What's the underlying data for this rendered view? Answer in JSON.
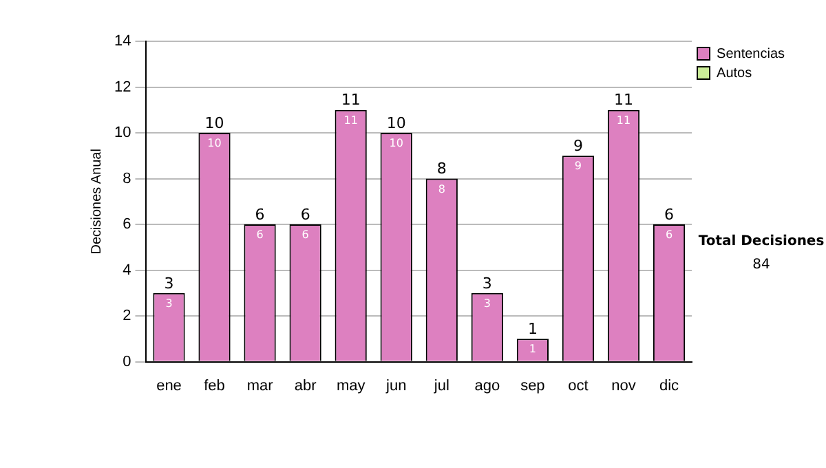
{
  "chart_data": {
    "type": "bar",
    "stacked": true,
    "categories": [
      "ene",
      "feb",
      "mar",
      "abr",
      "may",
      "jun",
      "jul",
      "ago",
      "sep",
      "oct",
      "nov",
      "dic"
    ],
    "series": [
      {
        "name": "Sentencias",
        "color": "#dd80c0",
        "values": [
          3,
          10,
          6,
          6,
          11,
          10,
          8,
          3,
          1,
          9,
          11,
          6
        ]
      },
      {
        "name": "Autos",
        "color": "#ccee99",
        "values": [
          null,
          null,
          null,
          null,
          null,
          null,
          null,
          null,
          null,
          null,
          null,
          null
        ]
      }
    ],
    "ylabel": "Decisiones Anual",
    "ylim": [
      0,
      14
    ],
    "yticks": [
      0,
      2,
      4,
      6,
      8,
      10,
      12,
      14
    ],
    "grid": "y",
    "legend": "right",
    "data_labels": true,
    "totals": [
      "3",
      "10",
      "6",
      "6",
      "11",
      "10",
      "8",
      "3",
      "1",
      "9",
      "11",
      "6"
    ],
    "annotations": [
      "Total Decisiones",
      "84"
    ]
  }
}
